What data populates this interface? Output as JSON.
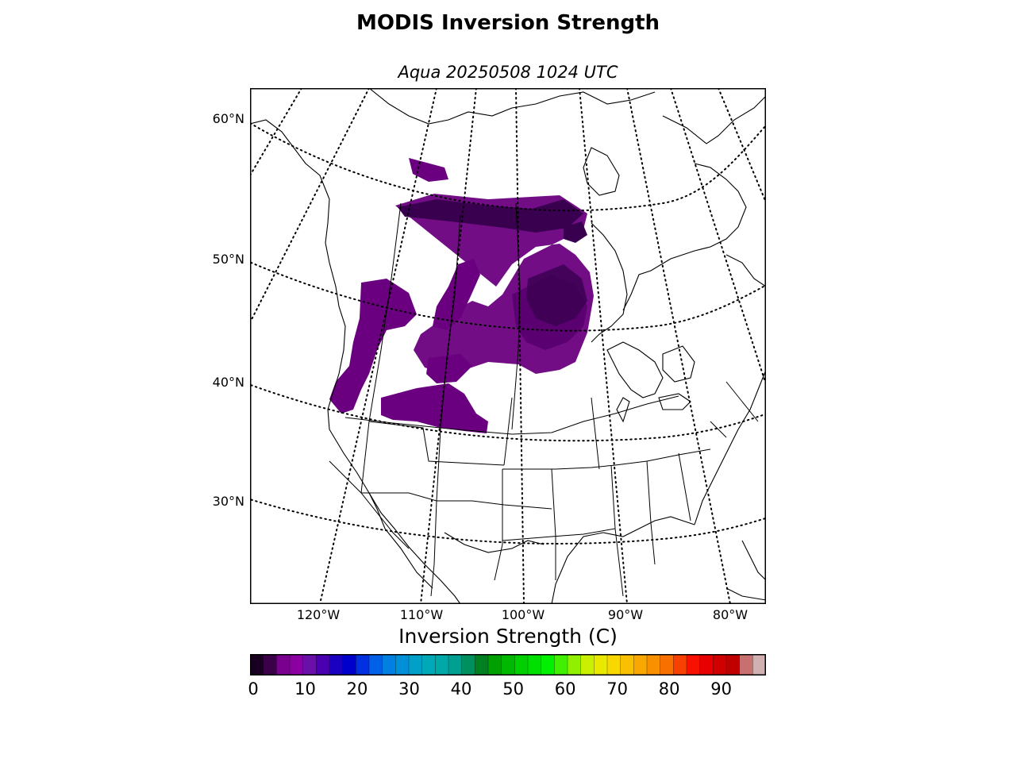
{
  "title": "MODIS Inversion Strength",
  "subtitle": "Aqua 20250508 1024 UTC",
  "map": {
    "latitude_labels": [
      "60°N",
      "50°N",
      "40°N",
      "30°N"
    ],
    "longitude_labels": [
      "120°W",
      "110°W",
      "100°W",
      "90°W",
      "80°W"
    ],
    "graticule_style": "dotted",
    "projection": "conic",
    "data_color": "#6a0080",
    "data_color_dark": "#3a0050",
    "data_region": "Western and central North America (northern Great Plains, Rockies, Prairie Provinces)"
  },
  "colorbar": {
    "label": "Inversion Strength (C)",
    "ticks": [
      "0",
      "10",
      "20",
      "30",
      "40",
      "50",
      "60",
      "70",
      "80",
      "90"
    ],
    "range": [
      0,
      98
    ],
    "colors": [
      "#1a0020",
      "#3a0048",
      "#7a0090",
      "#8a00a0",
      "#6a10a8",
      "#4a00b0",
      "#1a00c0",
      "#0000cc",
      "#0030e0",
      "#0060e8",
      "#0080e0",
      "#0090d8",
      "#00a0c8",
      "#00a8b8",
      "#00a8a8",
      "#00a090",
      "#009060",
      "#008020",
      "#00a000",
      "#00b800",
      "#00d000",
      "#00e000",
      "#00f000",
      "#40f000",
      "#90f000",
      "#c8f000",
      "#e8e800",
      "#f8d800",
      "#f8c000",
      "#f8a800",
      "#f89000",
      "#f87000",
      "#f84000",
      "#f81000",
      "#e80000",
      "#d00000",
      "#c00000",
      "#c87070",
      "#d0b0b0"
    ]
  }
}
